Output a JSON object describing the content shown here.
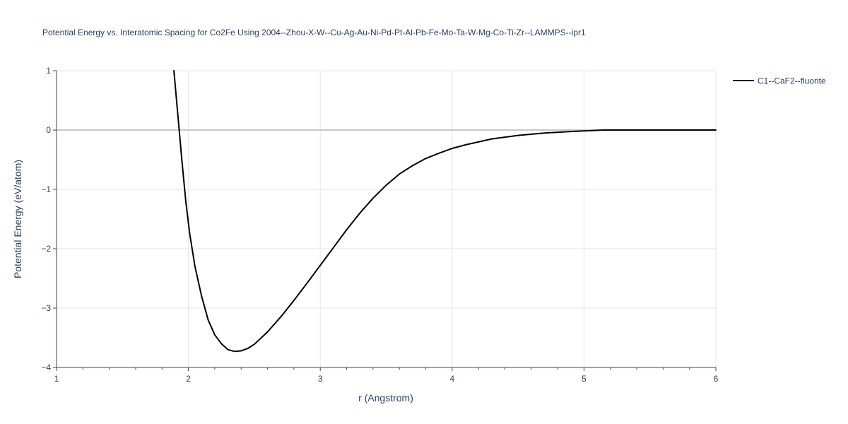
{
  "chart_data": {
    "type": "line",
    "title": "Potential Energy vs. Interatomic Spacing for Co2Fe Using 2004--Zhou-X-W--Cu-Ag-Au-Ni-Pd-Pt-Al-Pb-Fe-Mo-Ta-W-Mg-Co-Ti-Zr--LAMMPS--ipr1",
    "xlabel": "r (Angstrom)",
    "ylabel": "Potential Energy (eV/atom)",
    "xlim": [
      1,
      6
    ],
    "ylim": [
      -4,
      1
    ],
    "xticks": [
      1,
      2,
      3,
      4,
      5,
      6
    ],
    "yticks": [
      1,
      0,
      -1,
      -2,
      -3,
      -4
    ],
    "xtick_labels": [
      "1",
      "2",
      "3",
      "4",
      "5",
      "6"
    ],
    "ytick_labels": [
      "1",
      "0",
      "−1",
      "−2",
      "−3",
      "−4"
    ],
    "grid": true,
    "legend_position": "top-right",
    "series": [
      {
        "name": "C1--CaF2--fluorite",
        "color": "#000000",
        "x": [
          1.89,
          1.92,
          1.95,
          1.98,
          2.01,
          2.05,
          2.1,
          2.15,
          2.2,
          2.25,
          2.3,
          2.35,
          2.4,
          2.45,
          2.5,
          2.6,
          2.7,
          2.8,
          2.9,
          3.0,
          3.1,
          3.2,
          3.3,
          3.4,
          3.5,
          3.6,
          3.7,
          3.8,
          3.9,
          4.0,
          4.1,
          4.3,
          4.5,
          4.7,
          4.9,
          5.15,
          5.4,
          5.7,
          6.0
        ],
        "y": [
          1.0,
          0.25,
          -0.5,
          -1.2,
          -1.75,
          -2.3,
          -2.8,
          -3.2,
          -3.45,
          -3.6,
          -3.7,
          -3.73,
          -3.72,
          -3.68,
          -3.61,
          -3.4,
          -3.15,
          -2.87,
          -2.58,
          -2.28,
          -1.98,
          -1.68,
          -1.4,
          -1.15,
          -0.93,
          -0.74,
          -0.6,
          -0.48,
          -0.39,
          -0.31,
          -0.25,
          -0.15,
          -0.09,
          -0.05,
          -0.025,
          0.0,
          0.0,
          0.0,
          0.0
        ]
      }
    ]
  }
}
